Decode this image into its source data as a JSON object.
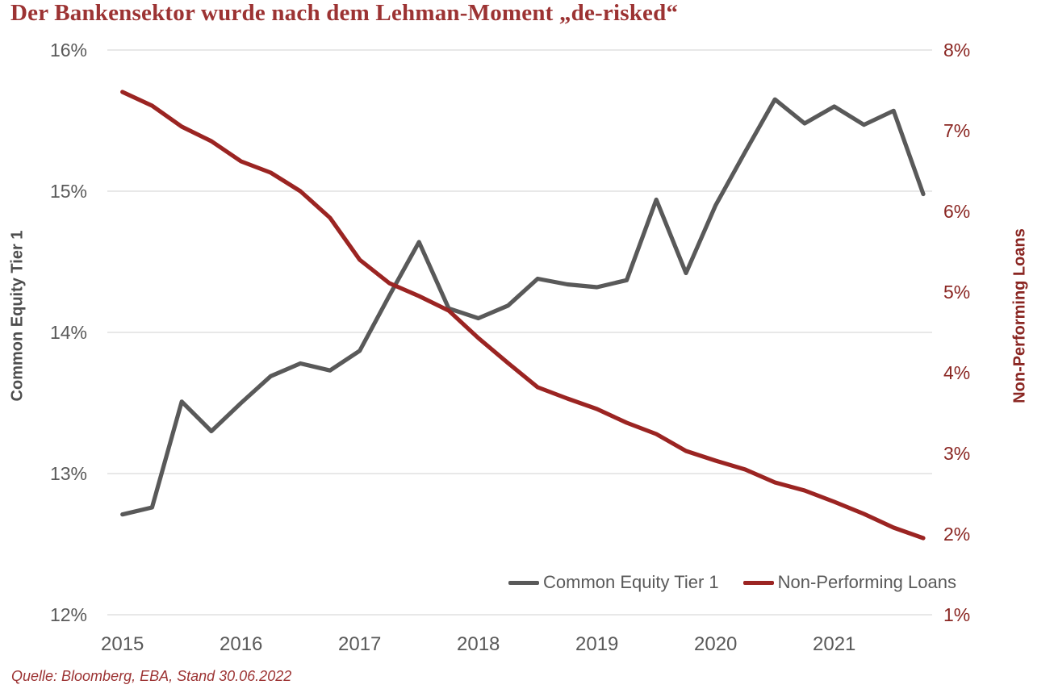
{
  "title": "Der Bankensektor wurde nach dem Lehman-Moment „de-risked“",
  "source": "Quelle: Bloomberg, EBA, Stand 30.06.2022",
  "colors": {
    "title_red": "#9C3333",
    "line_red": "#9B2422",
    "axis_red": "#8A2622",
    "line_gray": "#595959",
    "text_gray": "#595959",
    "axis_title_gray": "#4D4D4D",
    "gridline": "#D9D9D9"
  },
  "legend": {
    "cet1_label": "Common Equity Tier 1",
    "npl_label": "Non-Performing Loans"
  },
  "chart_data": {
    "type": "line",
    "title": "Der Bankensektor wurde nach dem Lehman-Moment „de-risked“",
    "grid": "horizontal",
    "legend_position": "bottom-right",
    "x_label": "",
    "x_tick_labels": [
      "2015",
      "2016",
      "2017",
      "2018",
      "2019",
      "2020",
      "2021"
    ],
    "x_tick_positions": [
      2015,
      2016,
      2017,
      2018,
      2019,
      2020,
      2021
    ],
    "x": [
      2015.0,
      2015.25,
      2015.5,
      2015.75,
      2016.0,
      2016.25,
      2016.5,
      2016.75,
      2017.0,
      2017.25,
      2017.5,
      2017.75,
      2018.0,
      2018.25,
      2018.5,
      2018.75,
      2019.0,
      2019.25,
      2019.5,
      2019.75,
      2020.0,
      2020.25,
      2020.5,
      2020.75,
      2021.0,
      2021.25,
      2021.5,
      2021.75
    ],
    "left_axis": {
      "label": "Common Equity Tier 1",
      "min": 12,
      "max": 16,
      "tick_labels": [
        "16%",
        "15%",
        "14%",
        "13%",
        "12%"
      ],
      "tick_values": [
        16,
        15,
        14,
        13,
        12
      ]
    },
    "right_axis": {
      "label": "Non-Performing Loans",
      "min": 1,
      "max": 8,
      "tick_labels": [
        "8%",
        "7%",
        "6%",
        "5%",
        "4%",
        "3%",
        "2%",
        "1%"
      ],
      "tick_values": [
        8,
        7,
        6,
        5,
        4,
        3,
        2,
        1
      ]
    },
    "series": [
      {
        "name": "Common Equity Tier 1",
        "axis": "left",
        "color": "#595959",
        "values": [
          12.71,
          12.76,
          13.51,
          13.3,
          13.5,
          13.69,
          13.78,
          13.73,
          13.87,
          14.26,
          14.64,
          14.17,
          14.1,
          14.19,
          14.38,
          14.34,
          14.32,
          14.37,
          14.94,
          14.42,
          14.9,
          15.28,
          15.65,
          15.48,
          15.6,
          15.47,
          15.57,
          14.98
        ]
      },
      {
        "name": "Non-Performing Loans",
        "axis": "right",
        "color": "#9B2422",
        "values": [
          7.48,
          7.31,
          7.05,
          6.87,
          6.62,
          6.48,
          6.25,
          5.92,
          5.4,
          5.11,
          4.95,
          4.77,
          4.43,
          4.12,
          3.82,
          3.68,
          3.55,
          3.38,
          3.24,
          3.03,
          2.91,
          2.8,
          2.64,
          2.54,
          2.4,
          2.25,
          2.08,
          1.95
        ]
      }
    ]
  }
}
